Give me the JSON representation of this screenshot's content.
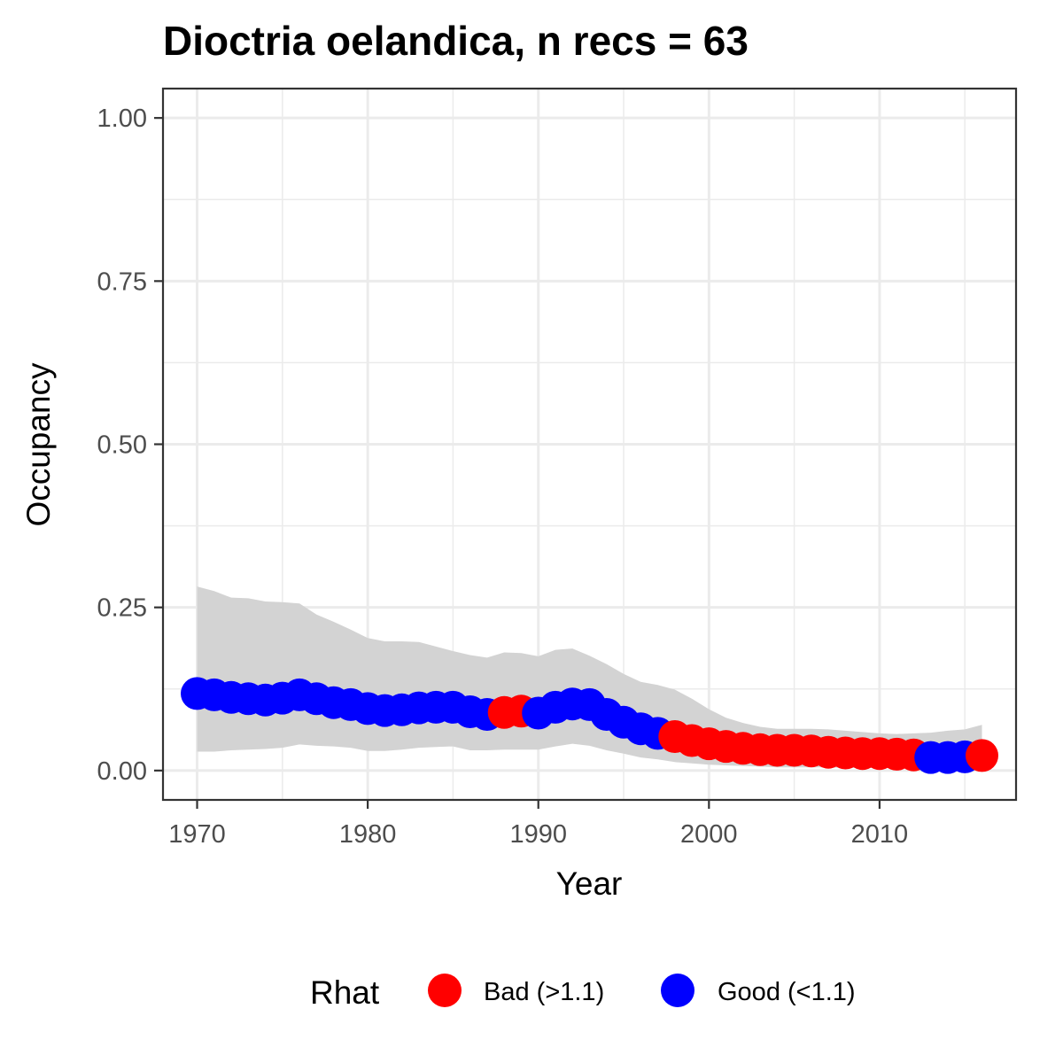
{
  "chart_data": {
    "type": "scatter",
    "title": "Dioctria oelandica, n recs = 63",
    "xlabel": "Year",
    "ylabel": "Occupancy",
    "xlim": [
      1968,
      2018
    ],
    "ylim": [
      -0.045,
      1.045
    ],
    "x_ticks": [
      "1970",
      "1980",
      "1990",
      "2000",
      "2010"
    ],
    "y_ticks": [
      "0.00",
      "0.25",
      "0.50",
      "0.75",
      "1.00"
    ],
    "grid": true,
    "legend": {
      "title": "Rhat",
      "position": "bottom",
      "entries": [
        {
          "label": "Bad (>1.1)",
          "color": "#ff0000"
        },
        {
          "label": "Good (<1.1)",
          "color": "#0000ff"
        }
      ]
    },
    "colors": {
      "Bad": "#ff0000",
      "Good": "#0000ff",
      "ribbon": "#d3d3d3"
    },
    "x": [
      1970,
      1971,
      1972,
      1973,
      1974,
      1975,
      1976,
      1977,
      1978,
      1979,
      1980,
      1981,
      1982,
      1983,
      1984,
      1985,
      1986,
      1987,
      1988,
      1989,
      1990,
      1991,
      1992,
      1993,
      1994,
      1995,
      1996,
      1997,
      1998,
      1999,
      2000,
      2001,
      2002,
      2003,
      2004,
      2005,
      2006,
      2007,
      2008,
      2009,
      2010,
      2011,
      2012,
      2013,
      2014,
      2015,
      2016
    ],
    "mean": [
      0.118,
      0.116,
      0.112,
      0.11,
      0.108,
      0.111,
      0.116,
      0.11,
      0.104,
      0.101,
      0.095,
      0.092,
      0.093,
      0.096,
      0.097,
      0.097,
      0.09,
      0.086,
      0.089,
      0.091,
      0.088,
      0.097,
      0.102,
      0.101,
      0.086,
      0.074,
      0.064,
      0.057,
      0.052,
      0.046,
      0.041,
      0.037,
      0.034,
      0.032,
      0.031,
      0.031,
      0.03,
      0.028,
      0.027,
      0.026,
      0.026,
      0.025,
      0.024,
      0.02,
      0.02,
      0.021,
      0.023
    ],
    "lower": [
      0.029,
      0.029,
      0.031,
      0.032,
      0.033,
      0.035,
      0.04,
      0.038,
      0.037,
      0.035,
      0.03,
      0.03,
      0.032,
      0.035,
      0.036,
      0.037,
      0.031,
      0.031,
      0.032,
      0.032,
      0.032,
      0.037,
      0.041,
      0.038,
      0.031,
      0.026,
      0.02,
      0.017,
      0.013,
      0.011,
      0.009,
      0.008,
      0.007,
      0.006,
      0.005,
      0.005,
      0.005,
      0.005,
      0.004,
      0.004,
      0.004,
      0.004,
      0.004,
      0.003,
      0.003,
      0.003,
      0.004
    ],
    "upper": [
      0.282,
      0.275,
      0.265,
      0.264,
      0.259,
      0.258,
      0.256,
      0.239,
      0.228,
      0.216,
      0.203,
      0.198,
      0.198,
      0.197,
      0.19,
      0.183,
      0.177,
      0.173,
      0.181,
      0.18,
      0.175,
      0.185,
      0.187,
      0.176,
      0.163,
      0.148,
      0.136,
      0.131,
      0.124,
      0.11,
      0.094,
      0.081,
      0.073,
      0.067,
      0.064,
      0.064,
      0.064,
      0.063,
      0.061,
      0.059,
      0.057,
      0.056,
      0.057,
      0.058,
      0.061,
      0.063,
      0.07
    ],
    "rhat": [
      "Good",
      "Good",
      "Good",
      "Good",
      "Good",
      "Good",
      "Good",
      "Good",
      "Good",
      "Good",
      "Good",
      "Good",
      "Good",
      "Good",
      "Good",
      "Good",
      "Good",
      "Good",
      "Bad",
      "Bad",
      "Good",
      "Good",
      "Good",
      "Good",
      "Good",
      "Good",
      "Good",
      "Good",
      "Bad",
      "Bad",
      "Bad",
      "Bad",
      "Bad",
      "Bad",
      "Bad",
      "Bad",
      "Bad",
      "Bad",
      "Bad",
      "Bad",
      "Bad",
      "Bad",
      "Bad",
      "Good",
      "Good",
      "Good",
      "Bad"
    ]
  }
}
